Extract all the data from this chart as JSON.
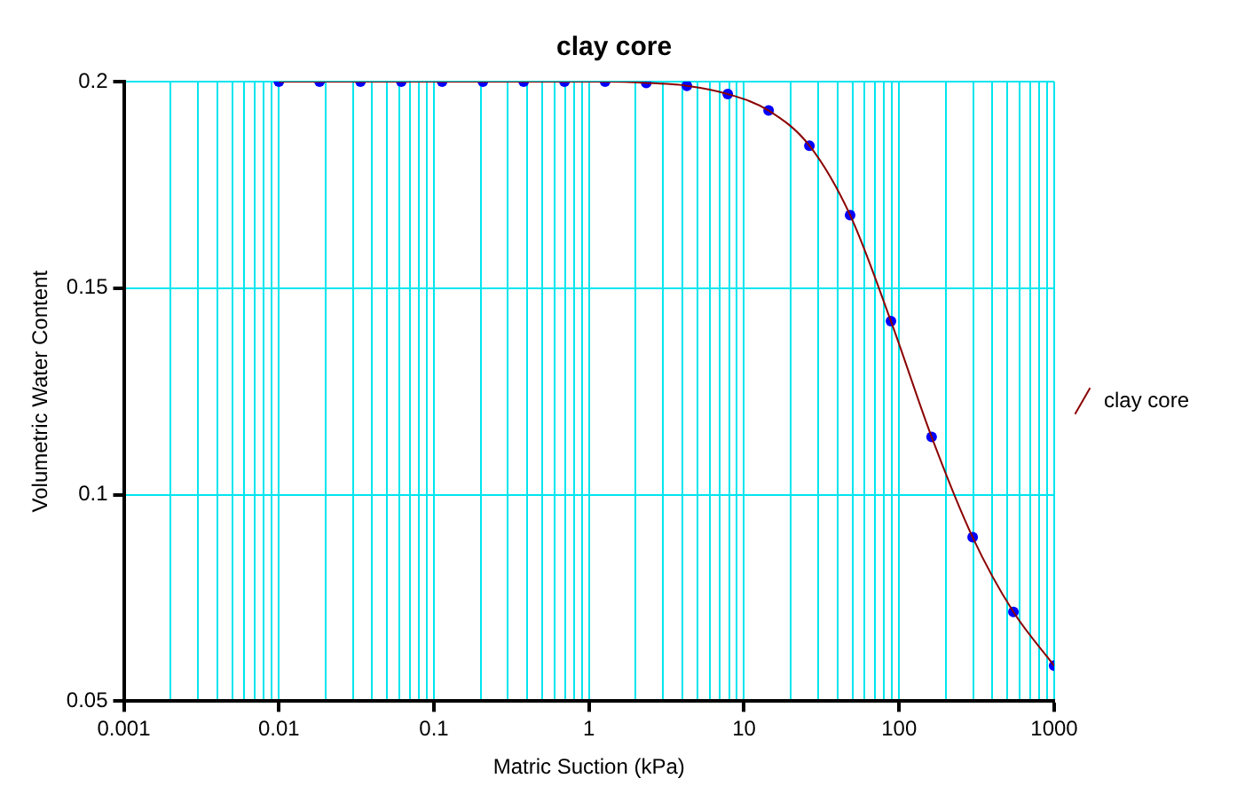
{
  "chart_data": {
    "type": "line",
    "title": "clay core",
    "xlabel": "Matric Suction (kPa)",
    "ylabel": "Volumetric Water Content",
    "log": "x",
    "grid": true,
    "legend": "right",
    "xlim": [
      0.001,
      1000
    ],
    "xticks": [
      0.001,
      {
        "value": 0.002,
        "label": null
      },
      {
        "value": 0.003,
        "label": null
      },
      {
        "value": 0.004,
        "label": null
      },
      {
        "value": 0.005,
        "label": null
      },
      {
        "value": 0.006,
        "label": null
      },
      {
        "value": 0.007,
        "label": null
      },
      {
        "value": 0.008,
        "label": null
      },
      {
        "value": 0.009,
        "label": null
      },
      0.01,
      {
        "value": 0.02,
        "label": null
      },
      {
        "value": 0.03,
        "label": null
      },
      {
        "value": 0.04,
        "label": null
      },
      {
        "value": 0.05,
        "label": null
      },
      {
        "value": 0.06,
        "label": null
      },
      {
        "value": 0.07,
        "label": null
      },
      {
        "value": 0.08,
        "label": null
      },
      {
        "value": 0.09,
        "label": null
      },
      0.1,
      {
        "value": 0.2,
        "label": null
      },
      {
        "value": 0.3,
        "label": null
      },
      {
        "value": 0.4,
        "label": null
      },
      {
        "value": 0.5,
        "label": null
      },
      {
        "value": 0.6,
        "label": null
      },
      {
        "value": 0.7,
        "label": null
      },
      {
        "value": 0.8,
        "label": null
      },
      {
        "value": 0.9,
        "label": null
      },
      1,
      {
        "value": 2,
        "label": null
      },
      {
        "value": 3,
        "label": null
      },
      {
        "value": 4,
        "label": null
      },
      {
        "value": 5,
        "label": null
      },
      {
        "value": 6,
        "label": null
      },
      {
        "value": 7,
        "label": null
      },
      {
        "value": 8,
        "label": null
      },
      {
        "value": 9,
        "label": null
      },
      10,
      {
        "value": 20,
        "label": null
      },
      {
        "value": 30,
        "label": null
      },
      {
        "value": 40,
        "label": null
      },
      {
        "value": 50,
        "label": null
      },
      {
        "value": 60,
        "label": null
      },
      {
        "value": 70,
        "label": null
      },
      {
        "value": 80,
        "label": null
      },
      {
        "value": 90,
        "label": null
      },
      100,
      {
        "value": 200,
        "label": null
      },
      {
        "value": 300,
        "label": null
      },
      {
        "value": 400,
        "label": null
      },
      {
        "value": 500,
        "label": null
      },
      {
        "value": 600,
        "label": null
      },
      {
        "value": 700,
        "label": null
      },
      {
        "value": 800,
        "label": null
      },
      {
        "value": 900,
        "label": null
      },
      1000
    ],
    "ylim": [
      0.05,
      0.2
    ],
    "yticks": [
      0.05,
      0.1,
      0.15,
      0.2
    ],
    "x": [
      0.01,
      0.0183,
      0.0336,
      0.0616,
      0.113,
      0.207,
      0.379,
      0.695,
      1.27,
      2.34,
      4.28,
      7.85,
      14.4,
      26.4,
      48.3,
      88.6,
      162,
      298,
      546,
      1000
    ],
    "series": [
      {
        "name": "clay core",
        "color": "#8b0000",
        "marker": "none",
        "values": [
          0.2,
          0.2,
          0.2,
          0.2,
          0.2,
          0.2,
          0.2,
          0.2,
          0.2,
          0.1997,
          0.199,
          0.197,
          0.193,
          0.1845,
          0.1677,
          0.142,
          0.114,
          0.0897,
          0.0716,
          0.0586
        ]
      },
      {
        "type": "scatter",
        "color": "#0000ff",
        "marker": "circle",
        "values": [
          0.2,
          0.2,
          0.2,
          0.2,
          0.2,
          0.2,
          0.2,
          0.2,
          0.2,
          0.1997,
          0.199,
          0.197,
          0.193,
          0.1845,
          0.1677,
          0.142,
          0.114,
          0.0897,
          0.0716,
          0.0586
        ]
      }
    ]
  }
}
